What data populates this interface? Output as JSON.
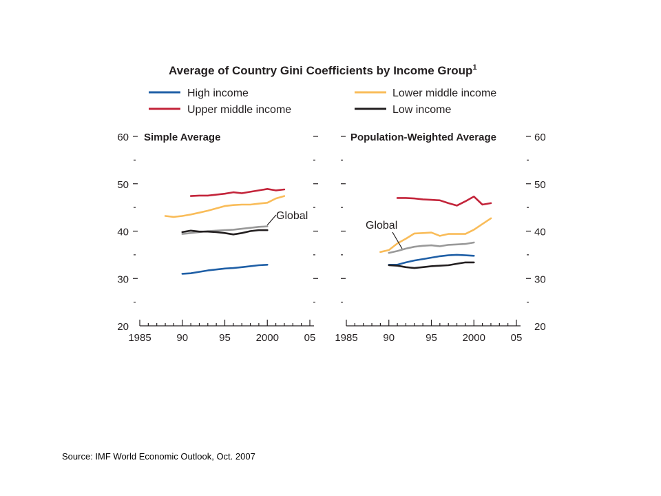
{
  "chart_data": {
    "type": "line",
    "title": "Average of Country Gini Coefficients by Income Group",
    "title_footnote": "1",
    "legend": [
      {
        "name": "High income",
        "color": "#1f5fa6"
      },
      {
        "name": "Upper middle income",
        "color": "#c3243a"
      },
      {
        "name": "Lower middle income",
        "color": "#f9bc59"
      },
      {
        "name": "Low income",
        "color": "#231f20"
      }
    ],
    "legend_placement": "top",
    "grid": false,
    "panels": [
      {
        "title": "Simple Average",
        "xlim": [
          1985,
          2005
        ],
        "ylim": [
          20,
          60
        ],
        "x_ticks": [
          "1985",
          "90",
          "95",
          "2000",
          "05"
        ],
        "y_ticks": [
          "20",
          "30",
          "40",
          "50",
          "60"
        ],
        "annotation": "Global",
        "series": [
          {
            "name": "High income",
            "color": "#1f5fa6",
            "x": [
              1990,
              1991,
              1992,
              1993,
              1994,
              1995,
              1996,
              1997,
              1998,
              1999,
              2000
            ],
            "y": [
              31.0,
              31.1,
              31.4,
              31.7,
              31.9,
              32.1,
              32.2,
              32.4,
              32.6,
              32.8,
              32.9
            ]
          },
          {
            "name": "Upper middle income",
            "color": "#c3243a",
            "x": [
              1991,
              1992,
              1993,
              1994,
              1995,
              1996,
              1997,
              1998,
              1999,
              2000,
              2001,
              2002
            ],
            "y": [
              47.4,
              47.5,
              47.5,
              47.7,
              47.9,
              48.2,
              48.0,
              48.3,
              48.6,
              48.9,
              48.6,
              48.8
            ]
          },
          {
            "name": "Lower middle income",
            "color": "#f9bc59",
            "x": [
              1988,
              1989,
              1990,
              1991,
              1992,
              1993,
              1994,
              1995,
              1996,
              1997,
              1998,
              1999,
              2000,
              2001,
              2002
            ],
            "y": [
              43.2,
              43.0,
              43.2,
              43.5,
              43.9,
              44.3,
              44.8,
              45.3,
              45.5,
              45.6,
              45.6,
              45.8,
              46.0,
              46.9,
              47.4
            ]
          },
          {
            "name": "Global",
            "color": "#999999",
            "x": [
              1990,
              1991,
              1992,
              1993,
              1994,
              1995,
              1996,
              1997,
              1998,
              1999,
              2000
            ],
            "y": [
              39.4,
              39.6,
              39.8,
              40.0,
              40.1,
              40.2,
              40.3,
              40.5,
              40.7,
              40.9,
              41.0
            ]
          },
          {
            "name": "Low income",
            "color": "#231f20",
            "x": [
              1990,
              1991,
              1992,
              1993,
              1994,
              1995,
              1996,
              1997,
              1998,
              1999,
              2000
            ],
            "y": [
              39.8,
              40.1,
              39.9,
              39.9,
              39.8,
              39.6,
              39.3,
              39.6,
              40.0,
              40.2,
              40.2
            ]
          }
        ]
      },
      {
        "title": "Population-Weighted Average",
        "xlim": [
          1985,
          2005
        ],
        "ylim": [
          20,
          60
        ],
        "x_ticks": [
          "1985",
          "90",
          "95",
          "2000",
          "05"
        ],
        "y_ticks": [
          "20",
          "30",
          "40",
          "50",
          "60"
        ],
        "annotation": "Global",
        "series": [
          {
            "name": "Upper middle income",
            "color": "#c3243a",
            "x": [
              1991,
              1992,
              1993,
              1994,
              1995,
              1996,
              1997,
              1998,
              1999,
              2000,
              2001,
              2002
            ],
            "y": [
              47.0,
              47.0,
              46.9,
              46.7,
              46.6,
              46.5,
              45.9,
              45.4,
              46.3,
              47.3,
              45.6,
              45.9
            ]
          },
          {
            "name": "Lower middle income",
            "color": "#f9bc59",
            "x": [
              1989,
              1990,
              1991,
              1992,
              1993,
              1994,
              1995,
              1996,
              1997,
              1998,
              1999,
              2000,
              2001,
              2002
            ],
            "y": [
              35.6,
              36.0,
              37.4,
              38.4,
              39.5,
              39.6,
              39.7,
              39.0,
              39.4,
              39.4,
              39.4,
              40.3,
              41.5,
              42.7
            ]
          },
          {
            "name": "Global",
            "color": "#999999",
            "x": [
              1990,
              1991,
              1992,
              1993,
              1994,
              1995,
              1996,
              1997,
              1998,
              1999,
              2000
            ],
            "y": [
              35.4,
              35.8,
              36.3,
              36.7,
              36.9,
              37.0,
              36.8,
              37.1,
              37.2,
              37.3,
              37.6
            ]
          },
          {
            "name": "High income",
            "color": "#1f5fa6",
            "x": [
              1990,
              1991,
              1992,
              1993,
              1994,
              1995,
              1996,
              1997,
              1998,
              1999,
              2000
            ],
            "y": [
              32.9,
              32.9,
              33.4,
              33.8,
              34.1,
              34.4,
              34.7,
              34.9,
              35.0,
              34.9,
              34.8
            ]
          },
          {
            "name": "Low income",
            "color": "#231f20",
            "x": [
              1990,
              1991,
              1992,
              1993,
              1994,
              1995,
              1996,
              1997,
              1998,
              1999,
              2000
            ],
            "y": [
              32.8,
              32.7,
              32.4,
              32.2,
              32.4,
              32.6,
              32.7,
              32.8,
              33.1,
              33.4,
              33.4
            ]
          }
        ]
      }
    ]
  },
  "source_text": "Source: IMF  World Economic Outlook, Oct. 2007"
}
